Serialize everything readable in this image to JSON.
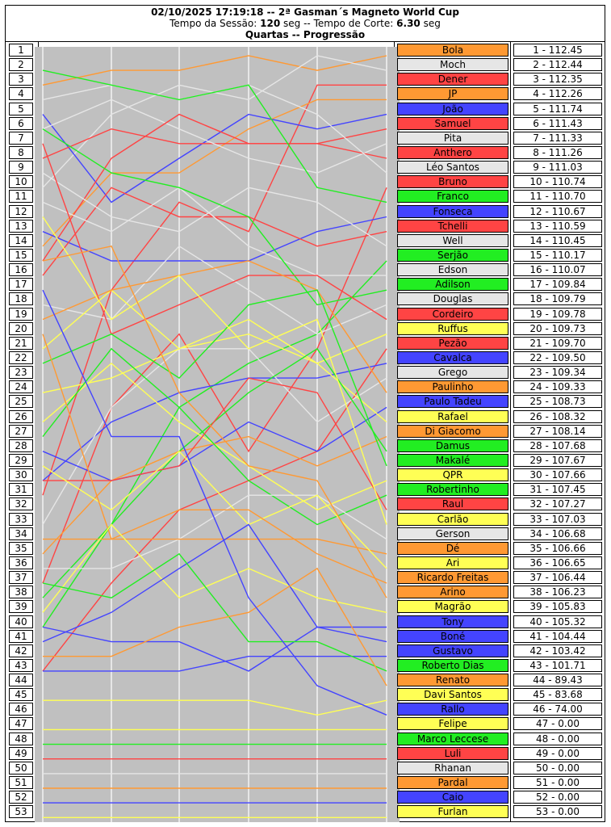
{
  "header": {
    "title": "02/10/2025 17:19:18 -- 2ª Gasman´s Magneto World Cup",
    "session_label": "Tempo da Sessão:",
    "session_value": "120",
    "session_unit": "seg --",
    "cut_label": "Tempo de Corte:",
    "cut_value": "6.30",
    "cut_unit": "seg",
    "phase": "Quartas -- Progressão"
  },
  "colors": {
    "orange": "#FF9933",
    "white": "#E6E6E6",
    "red": "#FF4444",
    "blue": "#4444FF",
    "green": "#22EE22",
    "yellow": "#FFFF55",
    "plot_bg": "#C0C0C0"
  },
  "chart_data": {
    "type": "line",
    "title": "Quartas -- Progressão",
    "x": [
      0,
      1,
      2,
      3,
      4,
      5
    ],
    "ylim": [
      1,
      53
    ],
    "y_inverted": true,
    "grid": "vertical",
    "series": [
      {
        "name": "Bola",
        "color": "orange",
        "values": [
          3,
          2,
          2,
          1,
          2,
          1
        ]
      },
      {
        "name": "Moch",
        "color": "white",
        "values": [
          10,
          5,
          3,
          4,
          1,
          2
        ]
      },
      {
        "name": "Dener",
        "color": "red",
        "values": [
          31,
          17,
          11,
          13,
          3,
          3
        ]
      },
      {
        "name": "JP",
        "color": "orange",
        "values": [
          14,
          9,
          9,
          6,
          4,
          4
        ]
      },
      {
        "name": "João",
        "color": "blue",
        "values": [
          5,
          11,
          8,
          5,
          6,
          5
        ]
      },
      {
        "name": "Samuel",
        "color": "red",
        "values": [
          8,
          6,
          7,
          7,
          7,
          6
        ]
      },
      {
        "name": "Pita",
        "color": "white",
        "values": [
          6,
          4,
          6,
          8,
          9,
          7
        ]
      },
      {
        "name": "Anthero",
        "color": "red",
        "values": [
          15,
          8,
          5,
          7,
          7,
          8
        ]
      },
      {
        "name": "Léo Santos",
        "color": "white",
        "values": [
          4,
          3,
          4,
          3,
          5,
          9
        ]
      },
      {
        "name": "Bruno",
        "color": "red",
        "values": [
          37,
          25,
          20,
          28,
          21,
          10
        ]
      },
      {
        "name": "Franco",
        "color": "green",
        "values": [
          2,
          3,
          4,
          3,
          10,
          11
        ]
      },
      {
        "name": "Fonseca",
        "color": "blue",
        "values": [
          13,
          15,
          15,
          15,
          13,
          12
        ]
      },
      {
        "name": "Tchelli",
        "color": "red",
        "values": [
          16,
          10,
          12,
          12,
          14,
          13
        ]
      },
      {
        "name": "Well",
        "color": "white",
        "values": [
          9,
          12,
          13,
          10,
          11,
          14
        ]
      },
      {
        "name": "Serjão",
        "color": "green",
        "values": [
          38,
          33,
          25,
          22,
          20,
          15
        ]
      },
      {
        "name": "Edson",
        "color": "white",
        "values": [
          11,
          13,
          10,
          14,
          16,
          16
        ]
      },
      {
        "name": "Adilson",
        "color": "green",
        "values": [
          6,
          9,
          10,
          12,
          18,
          17
        ]
      },
      {
        "name": "Douglas",
        "color": "white",
        "values": [
          18,
          19,
          14,
          17,
          20,
          18
        ]
      },
      {
        "name": "Cordeiro",
        "color": "red",
        "values": [
          7,
          20,
          18,
          16,
          16,
          19
        ]
      },
      {
        "name": "Ruffus",
        "color": "yellow",
        "values": [
          21,
          17,
          21,
          20,
          22,
          20
        ]
      },
      {
        "name": "Pezão",
        "color": "red",
        "values": [
          43,
          37,
          32,
          30,
          28,
          21
        ]
      },
      {
        "name": "Cavalca",
        "color": "blue",
        "values": [
          30,
          26,
          24,
          23,
          23,
          22
        ]
      },
      {
        "name": "Grego",
        "color": "white",
        "values": [
          33,
          25,
          21,
          21,
          26,
          23
        ]
      },
      {
        "name": "Paulinho",
        "color": "orange",
        "values": [
          19,
          17,
          16,
          15,
          17,
          24
        ]
      },
      {
        "name": "Paulo Tadeu",
        "color": "blue",
        "values": [
          28,
          30,
          29,
          26,
          28,
          25
        ]
      },
      {
        "name": "Rafael",
        "color": "yellow",
        "values": [
          24,
          23,
          21,
          19,
          22,
          26
        ]
      },
      {
        "name": "Di Giacomo",
        "color": "orange",
        "values": [
          35,
          30,
          28,
          27,
          29,
          27
        ]
      },
      {
        "name": "Damus",
        "color": "green",
        "values": [
          40,
          33,
          28,
          24,
          21,
          28
        ]
      },
      {
        "name": "Makalé",
        "color": "green",
        "values": [
          22,
          20,
          23,
          18,
          17,
          29
        ]
      },
      {
        "name": "QPR",
        "color": "yellow",
        "values": [
          26,
          22,
          26,
          29,
          32,
          30
        ]
      },
      {
        "name": "Robertinho",
        "color": "green",
        "values": [
          27,
          21,
          25,
          30,
          33,
          31
        ]
      },
      {
        "name": "Raul",
        "color": "red",
        "values": [
          30,
          30,
          29,
          23,
          24,
          32
        ]
      },
      {
        "name": "Carlão",
        "color": "yellow",
        "values": [
          12,
          19,
          16,
          21,
          19,
          33
        ]
      },
      {
        "name": "Gerson",
        "color": "white",
        "values": [
          36,
          36,
          34,
          31,
          31,
          34
        ]
      },
      {
        "name": "Dé",
        "color": "orange",
        "values": [
          34,
          34,
          34,
          34,
          34,
          35
        ]
      },
      {
        "name": "Ari",
        "color": "yellow",
        "values": [
          29,
          32,
          28,
          33,
          31,
          36
        ]
      },
      {
        "name": "Ricardo Freitas",
        "color": "orange",
        "values": [
          20,
          34,
          32,
          32,
          35,
          37
        ]
      },
      {
        "name": "Arino",
        "color": "orange",
        "values": [
          15,
          14,
          24,
          29,
          30,
          38
        ]
      },
      {
        "name": "Magrão",
        "color": "yellow",
        "values": [
          39,
          33,
          38,
          36,
          38,
          39
        ]
      },
      {
        "name": "Tony",
        "color": "blue",
        "values": [
          41,
          39,
          36,
          33,
          40,
          40
        ]
      },
      {
        "name": "Boné",
        "color": "blue",
        "values": [
          40,
          41,
          41,
          43,
          40,
          41
        ]
      },
      {
        "name": "Gustavo",
        "color": "blue",
        "values": [
          43,
          43,
          43,
          42,
          42,
          42
        ]
      },
      {
        "name": "Roberto Dias",
        "color": "green",
        "values": [
          37,
          38,
          35,
          41,
          41,
          43
        ]
      },
      {
        "name": "Renato",
        "color": "orange",
        "values": [
          42,
          42,
          40,
          39,
          36,
          44
        ]
      },
      {
        "name": "Davi Santos",
        "color": "yellow",
        "values": [
          45,
          45,
          45,
          45,
          46,
          45
        ]
      },
      {
        "name": "Rallo",
        "color": "blue",
        "values": [
          17,
          27,
          27,
          38,
          44,
          46
        ]
      },
      {
        "name": "Felipe",
        "color": "yellow",
        "values": [
          47,
          47,
          47,
          47,
          47,
          47
        ]
      },
      {
        "name": "Marco Leccese",
        "color": "green",
        "values": [
          48,
          48,
          48,
          48,
          48,
          48
        ]
      },
      {
        "name": "Luli",
        "color": "red",
        "values": [
          49,
          49,
          49,
          49,
          49,
          49
        ]
      },
      {
        "name": "Rhanan",
        "color": "white",
        "values": [
          50,
          50,
          50,
          50,
          50,
          50
        ]
      },
      {
        "name": "Pardal",
        "color": "orange",
        "values": [
          51,
          51,
          51,
          51,
          51,
          51
        ]
      },
      {
        "name": "Caio",
        "color": "blue",
        "values": [
          52,
          52,
          52,
          52,
          52,
          52
        ]
      },
      {
        "name": "Furlan",
        "color": "yellow",
        "values": [
          53,
          53,
          53,
          53,
          53,
          53
        ]
      }
    ],
    "standings": [
      {
        "pos": "1",
        "name": "Bola",
        "score": "1 - 112.45",
        "color": "orange"
      },
      {
        "pos": "2",
        "name": "Moch",
        "score": "2 - 112.44",
        "color": "white"
      },
      {
        "pos": "3",
        "name": "Dener",
        "score": "3 - 112.35",
        "color": "red"
      },
      {
        "pos": "4",
        "name": "JP",
        "score": "4 - 112.26",
        "color": "orange"
      },
      {
        "pos": "5",
        "name": "João",
        "score": "5 - 111.74",
        "color": "blue"
      },
      {
        "pos": "6",
        "name": "Samuel",
        "score": "6 - 111.43",
        "color": "red"
      },
      {
        "pos": "7",
        "name": "Pita",
        "score": "7 - 111.33",
        "color": "white"
      },
      {
        "pos": "8",
        "name": "Anthero",
        "score": "8 - 111.26",
        "color": "red"
      },
      {
        "pos": "9",
        "name": "Léo Santos",
        "score": "9 - 111.03",
        "color": "white"
      },
      {
        "pos": "10",
        "name": "Bruno",
        "score": "10 - 110.74",
        "color": "red"
      },
      {
        "pos": "11",
        "name": "Franco",
        "score": "11 - 110.70",
        "color": "green"
      },
      {
        "pos": "12",
        "name": "Fonseca",
        "score": "12 - 110.67",
        "color": "blue"
      },
      {
        "pos": "13",
        "name": "Tchelli",
        "score": "13 - 110.59",
        "color": "red"
      },
      {
        "pos": "14",
        "name": "Well",
        "score": "14 - 110.45",
        "color": "white"
      },
      {
        "pos": "15",
        "name": "Serjão",
        "score": "15 - 110.17",
        "color": "green"
      },
      {
        "pos": "16",
        "name": "Edson",
        "score": "16 - 110.07",
        "color": "white"
      },
      {
        "pos": "17",
        "name": "Adilson",
        "score": "17 - 109.84",
        "color": "green"
      },
      {
        "pos": "18",
        "name": "Douglas",
        "score": "18 - 109.79",
        "color": "white"
      },
      {
        "pos": "19",
        "name": "Cordeiro",
        "score": "19 - 109.78",
        "color": "red"
      },
      {
        "pos": "20",
        "name": "Ruffus",
        "score": "20 - 109.73",
        "color": "yellow"
      },
      {
        "pos": "21",
        "name": "Pezão",
        "score": "21 - 109.70",
        "color": "red"
      },
      {
        "pos": "22",
        "name": "Cavalca",
        "score": "22 - 109.50",
        "color": "blue"
      },
      {
        "pos": "23",
        "name": "Grego",
        "score": "23 - 109.34",
        "color": "white"
      },
      {
        "pos": "24",
        "name": "Paulinho",
        "score": "24 - 109.33",
        "color": "orange"
      },
      {
        "pos": "25",
        "name": "Paulo Tadeu",
        "score": "25 - 108.73",
        "color": "blue"
      },
      {
        "pos": "26",
        "name": "Rafael",
        "score": "26 - 108.32",
        "color": "yellow"
      },
      {
        "pos": "27",
        "name": "Di Giacomo",
        "score": "27 - 108.14",
        "color": "orange"
      },
      {
        "pos": "28",
        "name": "Damus",
        "score": "28 - 107.68",
        "color": "green"
      },
      {
        "pos": "29",
        "name": "Makalé",
        "score": "29 - 107.67",
        "color": "green"
      },
      {
        "pos": "30",
        "name": "QPR",
        "score": "30 - 107.66",
        "color": "yellow"
      },
      {
        "pos": "31",
        "name": "Robertinho",
        "score": "31 - 107.45",
        "color": "green"
      },
      {
        "pos": "32",
        "name": "Raul",
        "score": "32 - 107.27",
        "color": "red"
      },
      {
        "pos": "33",
        "name": "Carlão",
        "score": "33 - 107.03",
        "color": "yellow"
      },
      {
        "pos": "34",
        "name": "Gerson",
        "score": "34 - 106.68",
        "color": "white"
      },
      {
        "pos": "35",
        "name": "Dé",
        "score": "35 - 106.66",
        "color": "orange"
      },
      {
        "pos": "36",
        "name": "Ari",
        "score": "36 - 106.65",
        "color": "yellow"
      },
      {
        "pos": "37",
        "name": "Ricardo Freitas",
        "score": "37 - 106.44",
        "color": "orange"
      },
      {
        "pos": "38",
        "name": "Arino",
        "score": "38 - 106.23",
        "color": "orange"
      },
      {
        "pos": "39",
        "name": "Magrão",
        "score": "39 - 105.83",
        "color": "yellow"
      },
      {
        "pos": "40",
        "name": "Tony",
        "score": "40 - 105.32",
        "color": "blue"
      },
      {
        "pos": "41",
        "name": "Boné",
        "score": "41 - 104.44",
        "color": "blue"
      },
      {
        "pos": "42",
        "name": "Gustavo",
        "score": "42 - 103.42",
        "color": "blue"
      },
      {
        "pos": "43",
        "name": "Roberto Dias",
        "score": "43 - 101.71",
        "color": "green"
      },
      {
        "pos": "44",
        "name": "Renato",
        "score": "44 - 89.43",
        "color": "orange"
      },
      {
        "pos": "45",
        "name": "Davi Santos",
        "score": "45 - 83.68",
        "color": "yellow"
      },
      {
        "pos": "46",
        "name": "Rallo",
        "score": "46 - 74.00",
        "color": "blue"
      },
      {
        "pos": "47",
        "name": "Felipe",
        "score": "47 - 0.00",
        "color": "yellow"
      },
      {
        "pos": "48",
        "name": "Marco Leccese",
        "score": "48 - 0.00",
        "color": "green"
      },
      {
        "pos": "49",
        "name": "Luli",
        "score": "49 - 0.00",
        "color": "red"
      },
      {
        "pos": "50",
        "name": "Rhanan",
        "score": "50 - 0.00",
        "color": "white"
      },
      {
        "pos": "51",
        "name": "Pardal",
        "score": "51 - 0.00",
        "color": "orange"
      },
      {
        "pos": "52",
        "name": "Caio",
        "score": "52 - 0.00",
        "color": "blue"
      },
      {
        "pos": "53",
        "name": "Furlan",
        "score": "53 - 0.00",
        "color": "yellow"
      }
    ]
  }
}
